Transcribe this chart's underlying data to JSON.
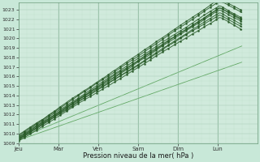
{
  "xlabel": "Pression niveau de la mer( hPa )",
  "bg_color": "#c8e8d8",
  "plot_bg_color": "#d0eadc",
  "grid_major_color": "#a8cdb8",
  "grid_minor_color": "#bcdbc8",
  "dark_green": "#2a5c2a",
  "mid_green": "#3a7a3a",
  "light_green": "#4a9a4a",
  "ylim_low": 1009,
  "ylim_high": 1023.8,
  "yticks": [
    1009,
    1010,
    1011,
    1012,
    1013,
    1014,
    1015,
    1016,
    1017,
    1018,
    1019,
    1020,
    1021,
    1022,
    1023
  ],
  "day_labels": [
    "Jeu",
    "Mar",
    "Ven",
    "Sam",
    "Dim",
    "Lun"
  ],
  "day_x": [
    0.0,
    1.0,
    2.0,
    3.0,
    4.0,
    5.0
  ],
  "xlim": [
    0,
    6.0
  ],
  "num_points": 150,
  "x_total": 5.6,
  "seed": 17
}
